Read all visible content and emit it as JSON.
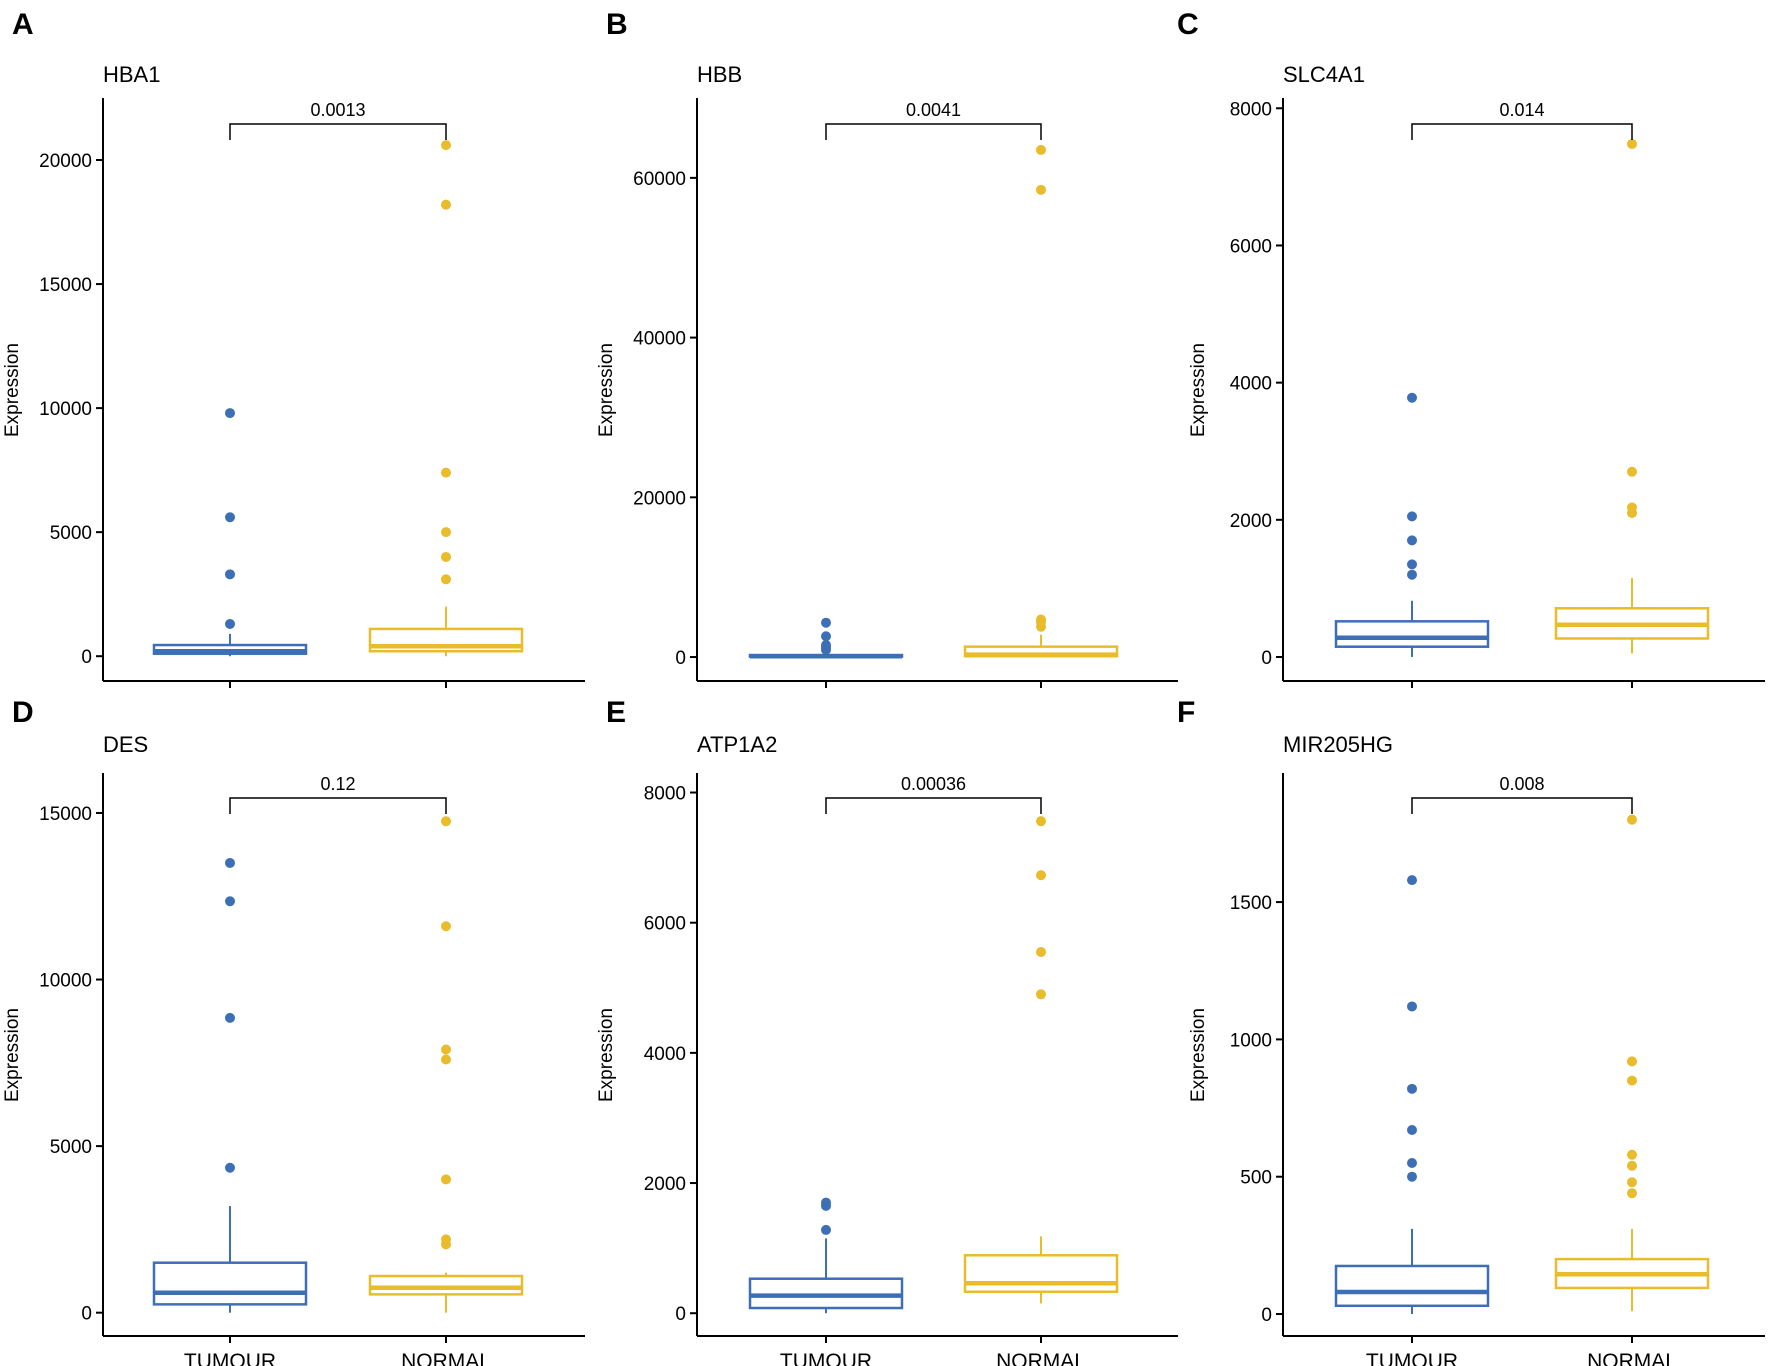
{
  "colors": {
    "tumour": "#3d6fb6",
    "normal": "#e8bc2a",
    "axis": "#000000",
    "background": "#ffffff"
  },
  "chart_data": [
    {
      "panel": "A",
      "title": "HBA1",
      "type": "box",
      "ylabel": "Expression",
      "categories": [
        "TUMOUR",
        "NORMAL"
      ],
      "show_xlabels": false,
      "ylim": [
        -1000,
        22500
      ],
      "yticks": [
        0,
        5000,
        10000,
        15000,
        20000
      ],
      "pvalue": "0.0013",
      "series": [
        {
          "q1": 100,
          "median": 200,
          "q3": 450,
          "whisker_low": 0,
          "whisker_high": 900,
          "outliers": [
            1300,
            3300,
            5600,
            9800
          ]
        },
        {
          "q1": 200,
          "median": 400,
          "q3": 1100,
          "whisker_low": 0,
          "whisker_high": 2000,
          "outliers": [
            3100,
            4000,
            5000,
            7400,
            18200,
            20600
          ]
        }
      ]
    },
    {
      "panel": "B",
      "title": "HBB",
      "type": "box",
      "ylabel": "Expression",
      "categories": [
        "TUMOUR",
        "NORMAL"
      ],
      "show_xlabels": false,
      "ylim": [
        -3000,
        70000
      ],
      "yticks": [
        0,
        20000,
        40000,
        60000
      ],
      "pvalue": "0.0041",
      "series": [
        {
          "q1": 50,
          "median": 100,
          "q3": 250,
          "whisker_low": 0,
          "whisker_high": 700,
          "outliers": [
            900,
            1200,
            1500,
            2600,
            4300
          ]
        },
        {
          "q1": 100,
          "median": 300,
          "q3": 1300,
          "whisker_low": 0,
          "whisker_high": 2800,
          "outliers": [
            3800,
            4400,
            4700,
            58500,
            63500
          ]
        }
      ]
    },
    {
      "panel": "C",
      "title": "SLC4A1",
      "type": "box",
      "ylabel": "Expression",
      "categories": [
        "TUMOUR",
        "NORMAL"
      ],
      "show_xlabels": false,
      "ylim": [
        -350,
        8150
      ],
      "yticks": [
        0,
        2000,
        4000,
        6000,
        8000
      ],
      "pvalue": "0.014",
      "series": [
        {
          "q1": 150,
          "median": 280,
          "q3": 520,
          "whisker_low": 0,
          "whisker_high": 820,
          "outliers": [
            1200,
            1350,
            1700,
            2050,
            3780
          ]
        },
        {
          "q1": 270,
          "median": 470,
          "q3": 710,
          "whisker_low": 50,
          "whisker_high": 1150,
          "outliers": [
            2100,
            2180,
            2700,
            7480
          ]
        }
      ]
    },
    {
      "panel": "D",
      "title": "DES",
      "type": "box",
      "ylabel": "Expression",
      "categories": [
        "TUMOUR",
        "NORMAL"
      ],
      "show_xlabels": true,
      "ylim": [
        -700,
        16200
      ],
      "yticks": [
        0,
        5000,
        10000,
        15000
      ],
      "pvalue": "0.12",
      "series": [
        {
          "q1": 250,
          "median": 600,
          "q3": 1500,
          "whisker_low": 0,
          "whisker_high": 3200,
          "outliers": [
            4350,
            8850,
            12350,
            13500
          ]
        },
        {
          "q1": 550,
          "median": 750,
          "q3": 1100,
          "whisker_low": 0,
          "whisker_high": 1200,
          "outliers": [
            2050,
            2200,
            4000,
            7600,
            7900,
            11600,
            14750
          ]
        }
      ]
    },
    {
      "panel": "E",
      "title": "ATP1A2",
      "type": "box",
      "ylabel": "Expression",
      "categories": [
        "TUMOUR",
        "NORMAL"
      ],
      "show_xlabels": true,
      "ylim": [
        -350,
        8300
      ],
      "yticks": [
        0,
        2000,
        4000,
        6000,
        8000
      ],
      "pvalue": "0.00036",
      "series": [
        {
          "q1": 80,
          "median": 270,
          "q3": 530,
          "whisker_low": 0,
          "whisker_high": 1150,
          "outliers": [
            1280,
            1650,
            1700
          ]
        },
        {
          "q1": 330,
          "median": 460,
          "q3": 890,
          "whisker_low": 150,
          "whisker_high": 1180,
          "outliers": [
            4900,
            5550,
            6730,
            7560
          ]
        }
      ]
    },
    {
      "panel": "F",
      "title": "MIR205HG",
      "type": "box",
      "ylabel": "Expression",
      "categories": [
        "TUMOUR",
        "NORMAL"
      ],
      "show_xlabels": true,
      "ylim": [
        -80,
        1970
      ],
      "yticks": [
        0,
        500,
        1000,
        1500
      ],
      "pvalue": "0.008",
      "series": [
        {
          "q1": 30,
          "median": 80,
          "q3": 175,
          "whisker_low": 0,
          "whisker_high": 310,
          "outliers": [
            500,
            550,
            670,
            820,
            1120,
            1580
          ]
        },
        {
          "q1": 95,
          "median": 145,
          "q3": 200,
          "whisker_low": 10,
          "whisker_high": 310,
          "outliers": [
            440,
            480,
            540,
            580,
            850,
            920,
            1800
          ]
        }
      ]
    }
  ]
}
